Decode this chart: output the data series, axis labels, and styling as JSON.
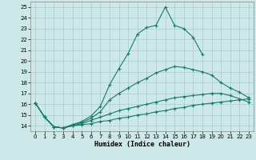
{
  "bg_color": "#cce8e8",
  "grid_color": "#aacccc",
  "line_color": "#1a7a6a",
  "xlabel": "Humidex (Indice chaleur)",
  "xlim": [
    -0.5,
    23.5
  ],
  "ylim": [
    13.5,
    25.5
  ],
  "yticks": [
    14,
    15,
    16,
    17,
    18,
    19,
    20,
    21,
    22,
    23,
    24,
    25
  ],
  "xticks": [
    0,
    1,
    2,
    3,
    4,
    5,
    6,
    7,
    8,
    9,
    10,
    11,
    12,
    13,
    14,
    15,
    16,
    17,
    18,
    19,
    20,
    21,
    22,
    23
  ],
  "lines": [
    {
      "x": [
        0,
        1,
        2,
        3,
        4,
        5,
        6,
        7,
        8,
        9,
        10,
        11,
        12,
        13,
        14,
        15,
        16,
        17,
        18
      ],
      "y": [
        16.1,
        14.8,
        13.9,
        13.8,
        14.1,
        14.4,
        14.9,
        15.8,
        17.8,
        19.3,
        20.7,
        22.5,
        23.1,
        23.3,
        25.0,
        23.3,
        23.0,
        22.2,
        20.6
      ]
    },
    {
      "x": [
        0,
        1,
        2,
        3,
        4,
        5,
        6,
        7,
        8,
        9,
        10,
        11,
        12,
        13,
        14,
        15,
        16,
        17,
        18,
        19,
        20,
        21,
        22,
        23
      ],
      "y": [
        16.1,
        14.8,
        13.9,
        13.8,
        14.1,
        14.3,
        14.7,
        15.3,
        16.4,
        17.0,
        17.5,
        18.0,
        18.4,
        18.9,
        19.2,
        19.5,
        19.4,
        19.2,
        19.0,
        18.7,
        18.0,
        17.5,
        17.1,
        16.6
      ]
    },
    {
      "x": [
        0,
        1,
        2,
        3,
        4,
        5,
        6,
        7,
        8,
        9,
        10,
        11,
        12,
        13,
        14,
        15,
        16,
        17,
        18,
        19,
        20,
        21,
        22,
        23
      ],
      "y": [
        16.1,
        14.8,
        13.9,
        13.8,
        14.0,
        14.2,
        14.5,
        14.8,
        15.1,
        15.4,
        15.6,
        15.8,
        16.0,
        16.2,
        16.4,
        16.6,
        16.7,
        16.8,
        16.9,
        17.0,
        17.0,
        16.8,
        16.5,
        16.2
      ]
    },
    {
      "x": [
        0,
        1,
        2,
        3,
        4,
        5,
        6,
        7,
        8,
        9,
        10,
        11,
        12,
        13,
        14,
        15,
        16,
        17,
        18,
        19,
        20,
        21,
        22,
        23
      ],
      "y": [
        16.1,
        14.8,
        13.9,
        13.8,
        14.0,
        14.1,
        14.2,
        14.4,
        14.5,
        14.7,
        14.8,
        15.0,
        15.1,
        15.3,
        15.4,
        15.6,
        15.7,
        15.9,
        16.0,
        16.1,
        16.2,
        16.3,
        16.4,
        16.5
      ]
    }
  ]
}
